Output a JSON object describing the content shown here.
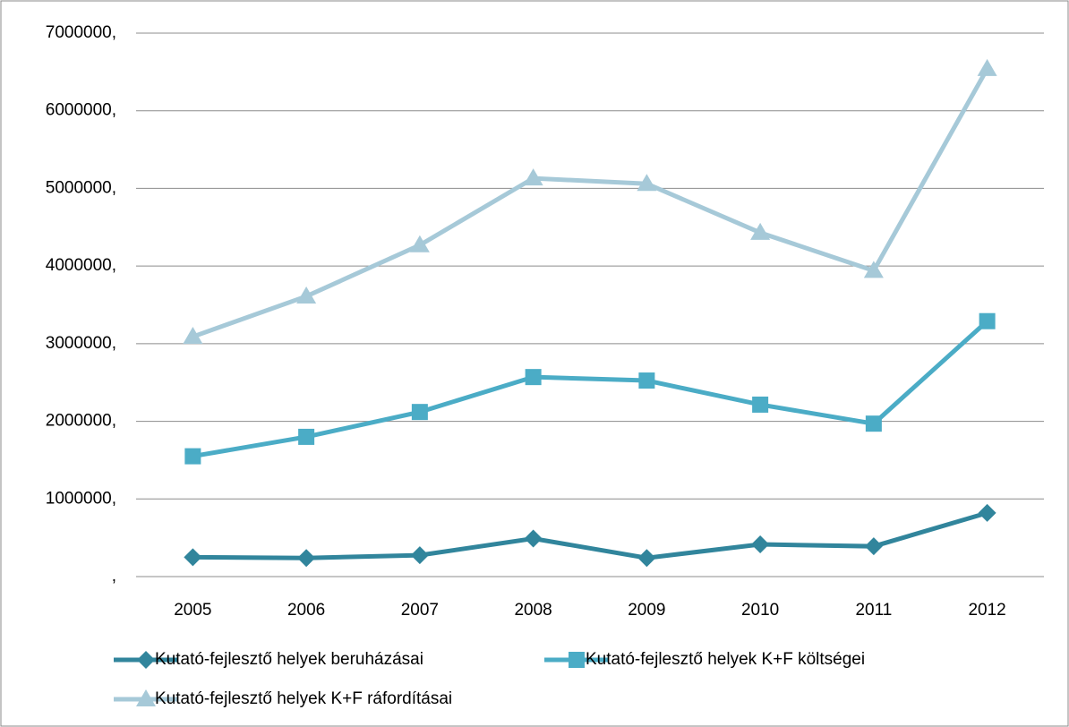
{
  "chart_data": {
    "type": "line",
    "categories": [
      "2005",
      "2006",
      "2007",
      "2008",
      "2009",
      "2010",
      "2011",
      "2012"
    ],
    "series": [
      {
        "name": "Kutató-fejlesztő helyek beruházásai",
        "color": "#31859c",
        "marker": "diamond",
        "values": [
          250000,
          240000,
          275000,
          490000,
          240000,
          415000,
          390000,
          820000
        ]
      },
      {
        "name": "Kutató-fejlesztő helyek K+F költségei",
        "color": "#4bacc6",
        "marker": "square",
        "values": [
          1550000,
          1800000,
          2120000,
          2570000,
          2525000,
          2215000,
          1970000,
          3290000
        ]
      },
      {
        "name": "Kutató-fejlesztő helyek K+F ráfordításai",
        "color": "#a6c9d8",
        "marker": "triangle",
        "values": [
          3090000,
          3610000,
          4270000,
          5130000,
          5060000,
          4430000,
          3940000,
          6540000
        ]
      }
    ],
    "ylim": [
      0,
      7000000
    ],
    "yticks": [
      {
        "value": 0,
        "label": ","
      },
      {
        "value": 1000000,
        "label": "1000000,"
      },
      {
        "value": 2000000,
        "label": "2000000,"
      },
      {
        "value": 3000000,
        "label": "3000000,"
      },
      {
        "value": 4000000,
        "label": "4000000,"
      },
      {
        "value": 5000000,
        "label": "5000000,"
      },
      {
        "value": 6000000,
        "label": "6000000,"
      },
      {
        "value": 7000000,
        "label": "7000000,"
      }
    ],
    "grid": true,
    "legend": "bottom"
  }
}
